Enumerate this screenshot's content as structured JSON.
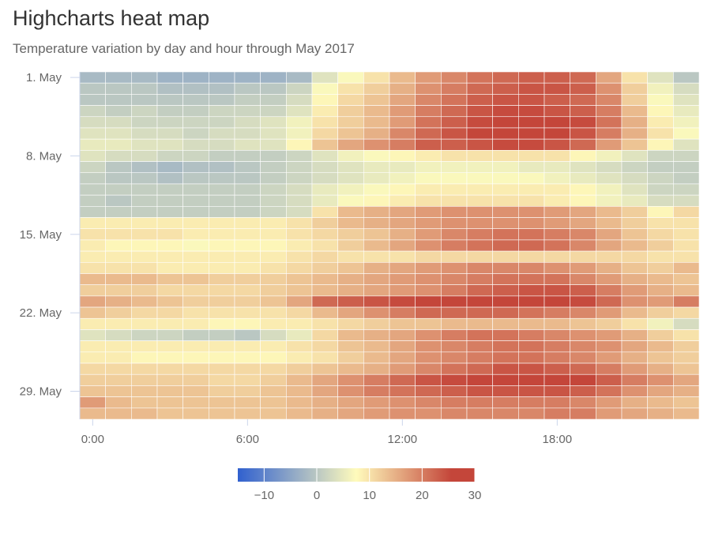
{
  "title": "Highcharts heat map",
  "subtitle": "Temperature variation by day and hour through May 2017",
  "chart_data": {
    "type": "heatmap",
    "title": "Highcharts heat map",
    "subtitle": "Temperature variation by day and hour through May 2017",
    "xlabel": "",
    "ylabel": "",
    "x": [
      0,
      1,
      2,
      3,
      4,
      5,
      6,
      7,
      8,
      9,
      10,
      11,
      12,
      13,
      14,
      15,
      16,
      17,
      18,
      19,
      20,
      21,
      22,
      23
    ],
    "x_ticks": [
      "0:00",
      "6:00",
      "12:00",
      "18:00"
    ],
    "x_tick_hours": [
      0,
      6,
      12,
      18
    ],
    "y": [
      "1. May",
      "2. May",
      "3. May",
      "4. May",
      "5. May",
      "6. May",
      "7. May",
      "8. May",
      "9. May",
      "10. May",
      "11. May",
      "12. May",
      "13. May",
      "14. May",
      "15. May",
      "16. May",
      "17. May",
      "18. May",
      "19. May",
      "20. May",
      "21. May",
      "22. May",
      "23. May",
      "24. May",
      "25. May",
      "26. May",
      "27. May",
      "28. May",
      "29. May",
      "30. May",
      "31. May"
    ],
    "y_ticks": [
      "1. May",
      "8. May",
      "15. May",
      "22. May",
      "29. May"
    ],
    "y_tick_days": [
      1,
      8,
      15,
      22,
      29
    ],
    "values": [
      [
        -2,
        -2,
        -2,
        -3,
        -3,
        -3,
        -3,
        -3,
        -2,
        4,
        7,
        10,
        14,
        17,
        19,
        21,
        22,
        23,
        23,
        22,
        16,
        10,
        4,
        0
      ],
      [
        0,
        0,
        0,
        -1,
        -1,
        -1,
        0,
        0,
        2,
        7,
        10,
        12,
        15,
        18,
        20,
        22,
        23,
        24,
        24,
        23,
        18,
        12,
        6,
        3
      ],
      [
        0,
        0,
        0,
        0,
        0,
        0,
        1,
        1,
        3,
        8,
        11,
        13,
        16,
        19,
        21,
        23,
        24,
        24,
        23,
        22,
        19,
        12,
        7,
        4
      ],
      [
        2,
        1,
        2,
        1,
        1,
        2,
        2,
        2,
        4,
        9,
        12,
        14,
        17,
        20,
        22,
        24,
        25,
        25,
        24,
        23,
        20,
        14,
        8,
        5
      ],
      [
        3,
        3,
        2,
        2,
        2,
        2,
        3,
        4,
        6,
        10,
        12,
        14,
        17,
        21,
        23,
        25,
        26,
        27,
        26,
        25,
        21,
        15,
        9,
        6
      ],
      [
        4,
        4,
        3,
        3,
        2,
        3,
        3,
        4,
        6,
        11,
        13,
        15,
        19,
        22,
        24,
        26,
        27,
        27,
        26,
        24,
        20,
        15,
        10,
        7
      ],
      [
        5,
        5,
        4,
        4,
        3,
        3,
        4,
        4,
        8,
        13,
        16,
        18,
        20,
        23,
        23,
        24,
        25,
        25,
        24,
        22,
        17,
        13,
        8,
        4
      ],
      [
        4,
        3,
        3,
        2,
        2,
        1,
        1,
        1,
        2,
        4,
        6,
        7,
        8,
        9,
        10,
        10,
        10,
        10,
        10,
        8,
        6,
        4,
        2,
        2
      ],
      [
        2,
        0,
        -1,
        -2,
        -1,
        -1,
        0,
        1,
        2,
        3,
        4,
        5,
        5,
        6,
        6,
        6,
        6,
        5,
        5,
        4,
        3,
        2,
        1,
        1
      ],
      [
        1,
        0,
        0,
        -1,
        0,
        0,
        0,
        1,
        2,
        3,
        4,
        5,
        6,
        7,
        7,
        7,
        7,
        7,
        6,
        5,
        4,
        3,
        2,
        1
      ],
      [
        1,
        1,
        1,
        1,
        1,
        1,
        1,
        2,
        3,
        5,
        6,
        7,
        8,
        9,
        9,
        9,
        9,
        9,
        9,
        8,
        6,
        4,
        2,
        2
      ],
      [
        1,
        0,
        1,
        1,
        1,
        1,
        1,
        2,
        3,
        5,
        7,
        8,
        9,
        10,
        10,
        10,
        10,
        10,
        9,
        8,
        6,
        5,
        3,
        3
      ],
      [
        1,
        1,
        1,
        1,
        1,
        1,
        1,
        2,
        3,
        10,
        14,
        15,
        16,
        17,
        18,
        18,
        18,
        18,
        17,
        16,
        14,
        12,
        8,
        11
      ],
      [
        9,
        9,
        9,
        9,
        9,
        9,
        9,
        9,
        10,
        12,
        14,
        15,
        16,
        17,
        18,
        18,
        18,
        18,
        17,
        16,
        14,
        12,
        10,
        10
      ],
      [
        10,
        10,
        10,
        10,
        9,
        9,
        9,
        9,
        10,
        11,
        12,
        13,
        15,
        17,
        19,
        20,
        21,
        21,
        20,
        19,
        16,
        13,
        11,
        10
      ],
      [
        9,
        8,
        8,
        8,
        7,
        8,
        8,
        8,
        9,
        10,
        12,
        14,
        16,
        18,
        20,
        21,
        22,
        22,
        21,
        19,
        16,
        14,
        12,
        10
      ],
      [
        9,
        9,
        9,
        9,
        9,
        9,
        9,
        9,
        10,
        11,
        10,
        10,
        10,
        11,
        11,
        11,
        11,
        11,
        11,
        11,
        11,
        11,
        10,
        10
      ],
      [
        10,
        10,
        10,
        9,
        9,
        9,
        9,
        10,
        11,
        12,
        13,
        15,
        16,
        17,
        18,
        19,
        19,
        19,
        18,
        17,
        15,
        13,
        12,
        14
      ],
      [
        14,
        14,
        14,
        13,
        13,
        12,
        12,
        12,
        13,
        14,
        15,
        16,
        17,
        18,
        19,
        20,
        21,
        21,
        21,
        19,
        17,
        15,
        14,
        13
      ],
      [
        12,
        12,
        12,
        11,
        11,
        11,
        11,
        12,
        13,
        14,
        15,
        16,
        17,
        18,
        20,
        22,
        23,
        24,
        24,
        23,
        20,
        17,
        15,
        14
      ],
      [
        16,
        15,
        14,
        13,
        12,
        12,
        12,
        13,
        16,
        22,
        23,
        24,
        25,
        26,
        27,
        28,
        28,
        29,
        30,
        25,
        22,
        18,
        17,
        20
      ],
      [
        13,
        12,
        11,
        11,
        10,
        10,
        10,
        10,
        11,
        14,
        16,
        18,
        20,
        22,
        22,
        22,
        22,
        21,
        20,
        19,
        17,
        14,
        12,
        11
      ],
      [
        9,
        9,
        9,
        9,
        9,
        8,
        8,
        9,
        9,
        10,
        11,
        12,
        13,
        13,
        14,
        14,
        14,
        14,
        14,
        13,
        12,
        10,
        6,
        3
      ],
      [
        4,
        3,
        2,
        2,
        1,
        1,
        0,
        3,
        5,
        11,
        14,
        15,
        16,
        18,
        20,
        21,
        21,
        20,
        19,
        18,
        17,
        15,
        12,
        10
      ],
      [
        9,
        9,
        9,
        9,
        9,
        9,
        9,
        9,
        10,
        11,
        13,
        14,
        16,
        18,
        19,
        20,
        21,
        21,
        20,
        19,
        18,
        16,
        14,
        12
      ],
      [
        9,
        9,
        8,
        8,
        8,
        8,
        8,
        8,
        9,
        10,
        12,
        14,
        16,
        18,
        19,
        20,
        21,
        21,
        20,
        19,
        17,
        15,
        13,
        12
      ],
      [
        11,
        11,
        11,
        11,
        11,
        11,
        11,
        11,
        12,
        13,
        14,
        15,
        17,
        19,
        21,
        22,
        24,
        24,
        23,
        22,
        20,
        17,
        15,
        13
      ],
      [
        12,
        12,
        12,
        12,
        12,
        11,
        11,
        12,
        14,
        16,
        18,
        20,
        22,
        24,
        25,
        26,
        27,
        27,
        27,
        26,
        23,
        20,
        18,
        16
      ],
      [
        13,
        13,
        13,
        13,
        13,
        12,
        12,
        13,
        14,
        16,
        18,
        20,
        21,
        22,
        23,
        24,
        24,
        24,
        24,
        23,
        21,
        18,
        16,
        15
      ],
      [
        17,
        14,
        13,
        13,
        13,
        13,
        13,
        13,
        14,
        15,
        16,
        17,
        18,
        19,
        20,
        20,
        20,
        20,
        20,
        19,
        17,
        15,
        14,
        13
      ],
      [
        14,
        14,
        14,
        13,
        13,
        13,
        13,
        13,
        14,
        15,
        16,
        17,
        18,
        18,
        19,
        19,
        19,
        19,
        20,
        20,
        17,
        16,
        15,
        14
      ]
    ],
    "color_axis": {
      "min": -15,
      "max": 30,
      "ticks": [
        -10,
        0,
        10,
        20,
        30
      ],
      "tick_labels": [
        "−10",
        "0",
        "10",
        "20",
        "30"
      ],
      "stops": [
        {
          "at": 0,
          "color": "#3060cf"
        },
        {
          "at": 0.5,
          "color": "#fffbbc"
        },
        {
          "at": 0.9,
          "color": "#c4463a"
        },
        {
          "at": 1,
          "color": "#c4463a"
        }
      ]
    },
    "legend_placement": "bottom-center",
    "grid": false
  },
  "colors": {
    "axis_line": "#ccd6eb",
    "tick_mark": "#ccd6eb",
    "cell_border": "#ffffff",
    "label_text": "#666666",
    "title_text": "#333333"
  }
}
